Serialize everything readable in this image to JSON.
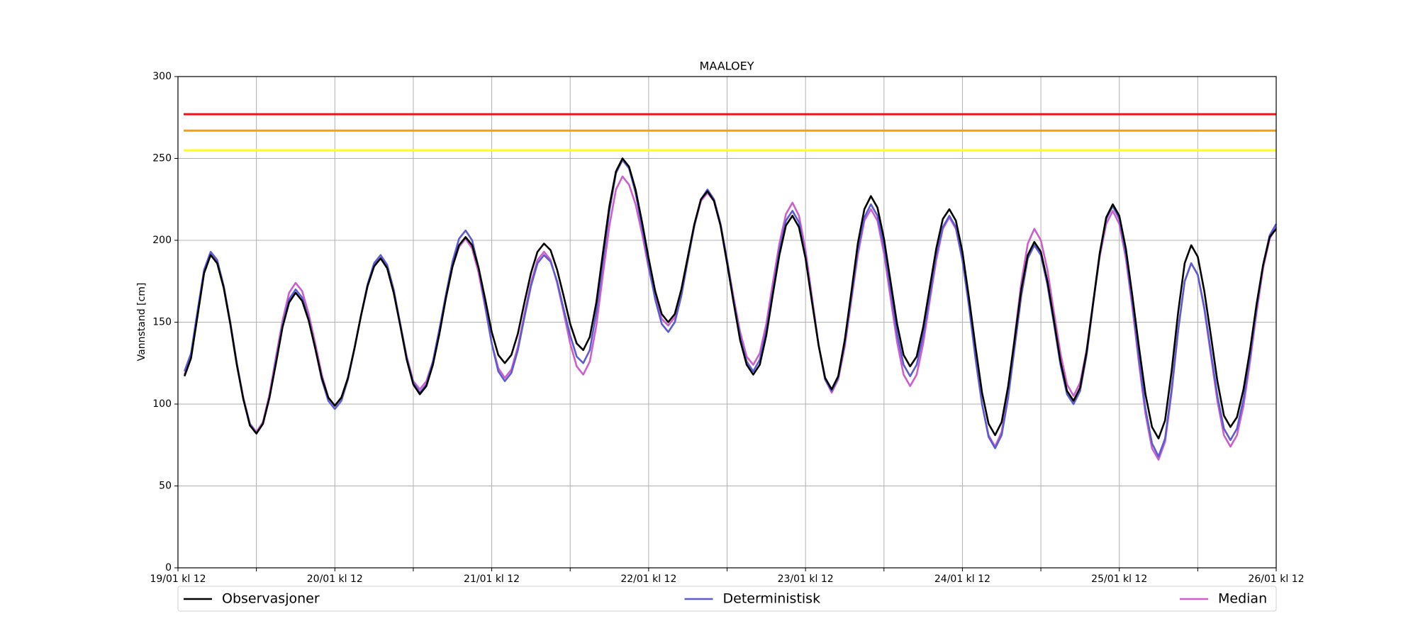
{
  "chart_data": {
    "type": "line",
    "title": "MAALOEY",
    "y_label": "Vannstand [cm]",
    "x": [
      1,
      2,
      3,
      4,
      5,
      6,
      7,
      8,
      9,
      10,
      11,
      12,
      13,
      14,
      15,
      16,
      17,
      18,
      19,
      20,
      21,
      22,
      23,
      24,
      25,
      26,
      27,
      28,
      29,
      30,
      31,
      32,
      33,
      34,
      35,
      36,
      37,
      38,
      39,
      40,
      41,
      42,
      43,
      44,
      45,
      46,
      47,
      48,
      49,
      50,
      51,
      52,
      53,
      54,
      55,
      56,
      57,
      58,
      59,
      60,
      61,
      62,
      63,
      64,
      65,
      66,
      67,
      68,
      69,
      70,
      71,
      72,
      73,
      74,
      75,
      76,
      77,
      78,
      79,
      80,
      81,
      82,
      83,
      84,
      85,
      86,
      87,
      88,
      89,
      90,
      91,
      92,
      93,
      94,
      95,
      96,
      97,
      98,
      99,
      100,
      101,
      102,
      103,
      104,
      105,
      106,
      107,
      108,
      109,
      110,
      111,
      112,
      113,
      114,
      115,
      116,
      117,
      118,
      119,
      120,
      121,
      122,
      123,
      124,
      125,
      126,
      127,
      128,
      129,
      130,
      131,
      132,
      133,
      134,
      135,
      136,
      137,
      138,
      139,
      140,
      141,
      142,
      143,
      144,
      145,
      146,
      147,
      148,
      149,
      150,
      151,
      152,
      153,
      154,
      155,
      156,
      157,
      158,
      159,
      160,
      161,
      162,
      163,
      164,
      165,
      166,
      167,
      168
    ],
    "series": [
      {
        "name": "Observasjoner",
        "color": "#000000",
        "values": [
          117,
          128,
          154,
          180,
          191,
          186,
          171,
          149,
          124,
          103,
          87,
          82,
          88,
          104,
          125,
          147,
          162,
          168,
          163,
          151,
          134,
          116,
          104,
          99,
          104,
          116,
          134,
          154,
          172,
          184,
          189,
          183,
          168,
          148,
          127,
          112,
          106,
          111,
          124,
          143,
          165,
          184,
          197,
          202,
          197,
          183,
          164,
          144,
          130,
          125,
          130,
          143,
          162,
          180,
          193,
          198,
          194,
          182,
          166,
          149,
          137,
          133,
          141,
          162,
          192,
          221,
          242,
          250,
          245,
          231,
          211,
          189,
          169,
          155,
          150,
          155,
          170,
          190,
          210,
          225,
          230,
          224,
          209,
          186,
          162,
          139,
          124,
          118,
          124,
          142,
          167,
          191,
          209,
          215,
          208,
          189,
          162,
          136,
          116,
          109,
          117,
          139,
          168,
          198,
          219,
          227,
          220,
          201,
          175,
          149,
          130,
          123,
          129,
          147,
          171,
          195,
          213,
          219,
          212,
          193,
          165,
          135,
          107,
          88,
          81,
          89,
          111,
          140,
          170,
          191,
          199,
          193,
          175,
          151,
          126,
          108,
          102,
          110,
          132,
          162,
          192,
          214,
          222,
          215,
          195,
          166,
          135,
          106,
          86,
          79,
          90,
          120,
          156,
          186,
          197,
          190,
          169,
          142,
          114,
          93,
          86,
          92,
          109,
          133,
          161,
          185,
          202,
          207
        ]
      },
      {
        "name": "Deterministisk",
        "color": "#5c5cd0",
        "values": [
          120,
          131,
          157,
          182,
          193,
          188,
          172,
          150,
          125,
          103,
          88,
          82,
          88,
          104,
          126,
          148,
          164,
          170,
          165,
          152,
          134,
          115,
          102,
          97,
          102,
          115,
          134,
          154,
          173,
          186,
          191,
          185,
          170,
          149,
          128,
          113,
          107,
          112,
          126,
          146,
          167,
          187,
          201,
          206,
          200,
          183,
          160,
          137,
          120,
          114,
          119,
          133,
          153,
          172,
          186,
          191,
          187,
          175,
          158,
          142,
          129,
          125,
          133,
          156,
          187,
          218,
          241,
          249,
          244,
          229,
          208,
          185,
          164,
          149,
          144,
          150,
          166,
          188,
          209,
          225,
          231,
          225,
          210,
          188,
          163,
          141,
          126,
          120,
          127,
          145,
          169,
          194,
          212,
          218,
          211,
          190,
          163,
          136,
          115,
          108,
          116,
          137,
          165,
          194,
          214,
          222,
          215,
          196,
          170,
          143,
          124,
          117,
          124,
          142,
          166,
          191,
          208,
          215,
          208,
          188,
          160,
          128,
          100,
          80,
          73,
          81,
          104,
          135,
          166,
          189,
          197,
          191,
          173,
          149,
          124,
          106,
          100,
          108,
          130,
          161,
          191,
          213,
          221,
          213,
          192,
          162,
          128,
          97,
          76,
          68,
          79,
          109,
          145,
          175,
          186,
          179,
          159,
          132,
          105,
          85,
          78,
          85,
          103,
          129,
          159,
          185,
          203,
          210
        ]
      },
      {
        "name": "Median",
        "color": "#cc5fcc",
        "values": [
          118,
          129,
          155,
          181,
          192,
          187,
          172,
          150,
          125,
          104,
          88,
          83,
          89,
          106,
          129,
          151,
          168,
          174,
          169,
          155,
          137,
          118,
          104,
          99,
          104,
          116,
          134,
          154,
          172,
          185,
          189,
          184,
          169,
          149,
          129,
          114,
          109,
          114,
          126,
          145,
          165,
          184,
          196,
          201,
          195,
          180,
          159,
          137,
          122,
          116,
          121,
          135,
          155,
          174,
          188,
          193,
          188,
          174,
          156,
          137,
          123,
          118,
          126,
          148,
          179,
          209,
          231,
          239,
          234,
          222,
          204,
          183,
          165,
          152,
          148,
          153,
          168,
          189,
          209,
          224,
          229,
          224,
          209,
          188,
          165,
          144,
          129,
          124,
          131,
          149,
          174,
          198,
          216,
          223,
          215,
          194,
          165,
          136,
          115,
          107,
          115,
          135,
          163,
          191,
          212,
          219,
          212,
          192,
          165,
          138,
          118,
          111,
          118,
          137,
          163,
          188,
          207,
          214,
          207,
          188,
          160,
          128,
          100,
          81,
          74,
          83,
          107,
          141,
          174,
          198,
          207,
          200,
          182,
          156,
          131,
          112,
          105,
          113,
          133,
          162,
          190,
          210,
          218,
          210,
          189,
          159,
          125,
          94,
          73,
          66,
          77,
          107,
          145,
          175,
          186,
          179,
          158,
          130,
          102,
          81,
          74,
          81,
          99,
          126,
          156,
          183,
          201,
          208
        ]
      }
    ],
    "hlines": [
      {
        "value": 277,
        "color": "#e8141c"
      },
      {
        "value": 267,
        "color": "#f5a00f"
      },
      {
        "value": 255,
        "color": "#ffff24"
      }
    ],
    "xlim": [
      0,
      168
    ],
    "xticks": [
      {
        "value": 0,
        "label": "19/01 kl 12"
      },
      {
        "value": 24,
        "label": "20/01 kl 12"
      },
      {
        "value": 48,
        "label": "21/01 kl 12"
      },
      {
        "value": 72,
        "label": "22/01 kl 12"
      },
      {
        "value": 96,
        "label": "23/01 kl 12"
      },
      {
        "value": 120,
        "label": "24/01 kl 12"
      },
      {
        "value": 144,
        "label": "25/01 kl 12"
      },
      {
        "value": 168,
        "label": "26/01 kl 12"
      }
    ],
    "xticks_minor": [
      12,
      36,
      60,
      84,
      108,
      132,
      156
    ],
    "ylim": [
      0,
      300
    ],
    "yticks": [
      0,
      50,
      100,
      150,
      200,
      250,
      300
    ],
    "grid": true,
    "legend": "bottom"
  }
}
